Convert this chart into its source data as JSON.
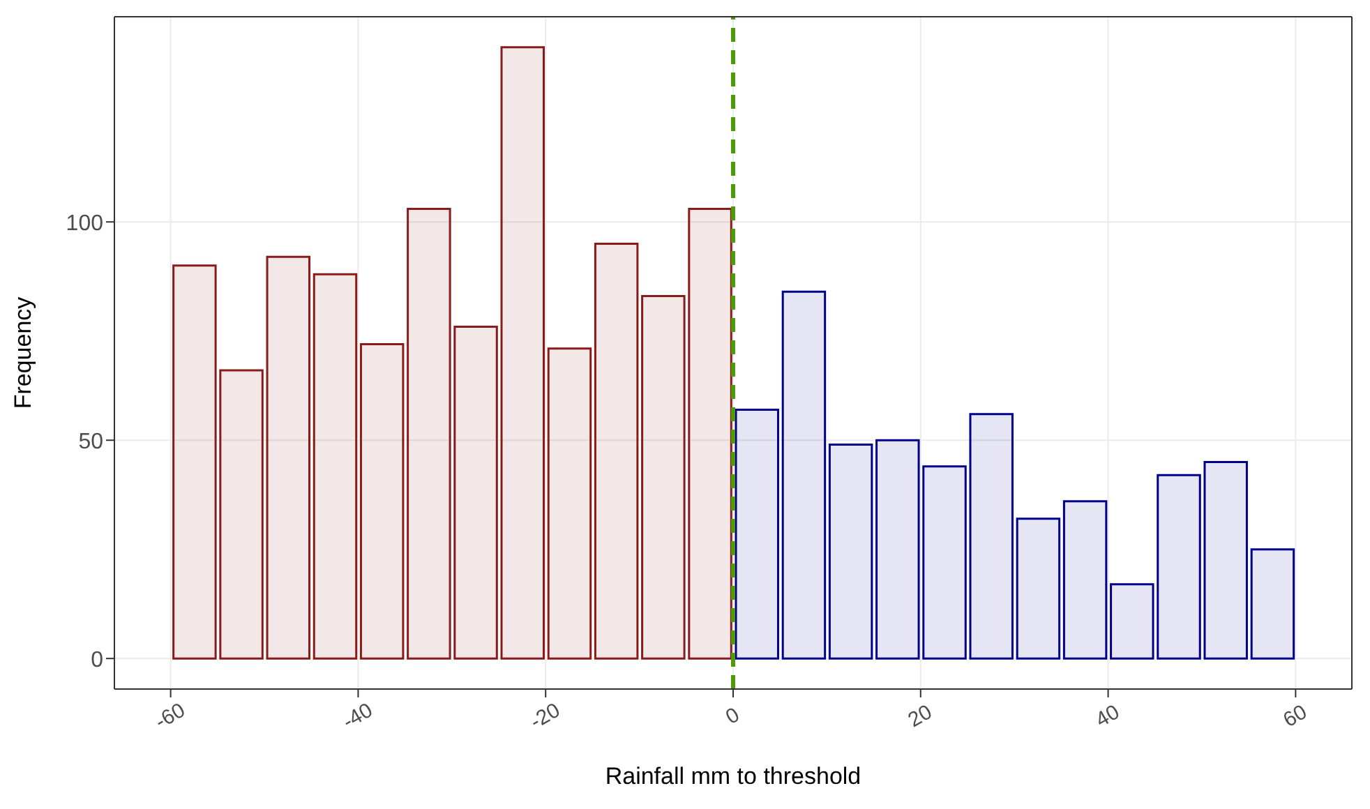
{
  "chart_data": {
    "type": "histogram",
    "xlabel": "Rainfall mm to threshold",
    "ylabel": "Frequency",
    "bins": [
      -60,
      -55,
      -50,
      -45,
      -40,
      -35,
      -30,
      -25,
      -20,
      -15,
      -10,
      -5,
      0,
      5,
      10,
      15,
      20,
      25,
      30,
      35,
      40,
      45,
      50,
      55,
      60
    ],
    "values": [
      90,
      66,
      92,
      88,
      72,
      103,
      76,
      140,
      71,
      95,
      83,
      103,
      57,
      84,
      49,
      50,
      44,
      56,
      32,
      36,
      17,
      42,
      45,
      25
    ],
    "colors": [
      "#8b1a1a",
      "#8b1a1a",
      "#8b1a1a",
      "#8b1a1a",
      "#8b1a1a",
      "#8b1a1a",
      "#8b1a1a",
      "#8b1a1a",
      "#8b1a1a",
      "#8b1a1a",
      "#8b1a1a",
      "#8b1a1a",
      "#00008b",
      "#00008b",
      "#00008b",
      "#00008b",
      "#00008b",
      "#00008b",
      "#00008b",
      "#00008b",
      "#00008b",
      "#00008b",
      "#00008b",
      "#00008b"
    ],
    "xlim": [
      -66,
      66
    ],
    "xticks": [
      -60,
      -40,
      -20,
      0,
      20,
      40,
      60
    ],
    "ylim": [
      -7,
      147
    ],
    "yticks": [
      0,
      50,
      100
    ],
    "grid": true,
    "ref_lines": [
      {
        "axis": "x",
        "value": 0,
        "color": "#4f9a0a",
        "line_style": "dashed"
      }
    ]
  }
}
